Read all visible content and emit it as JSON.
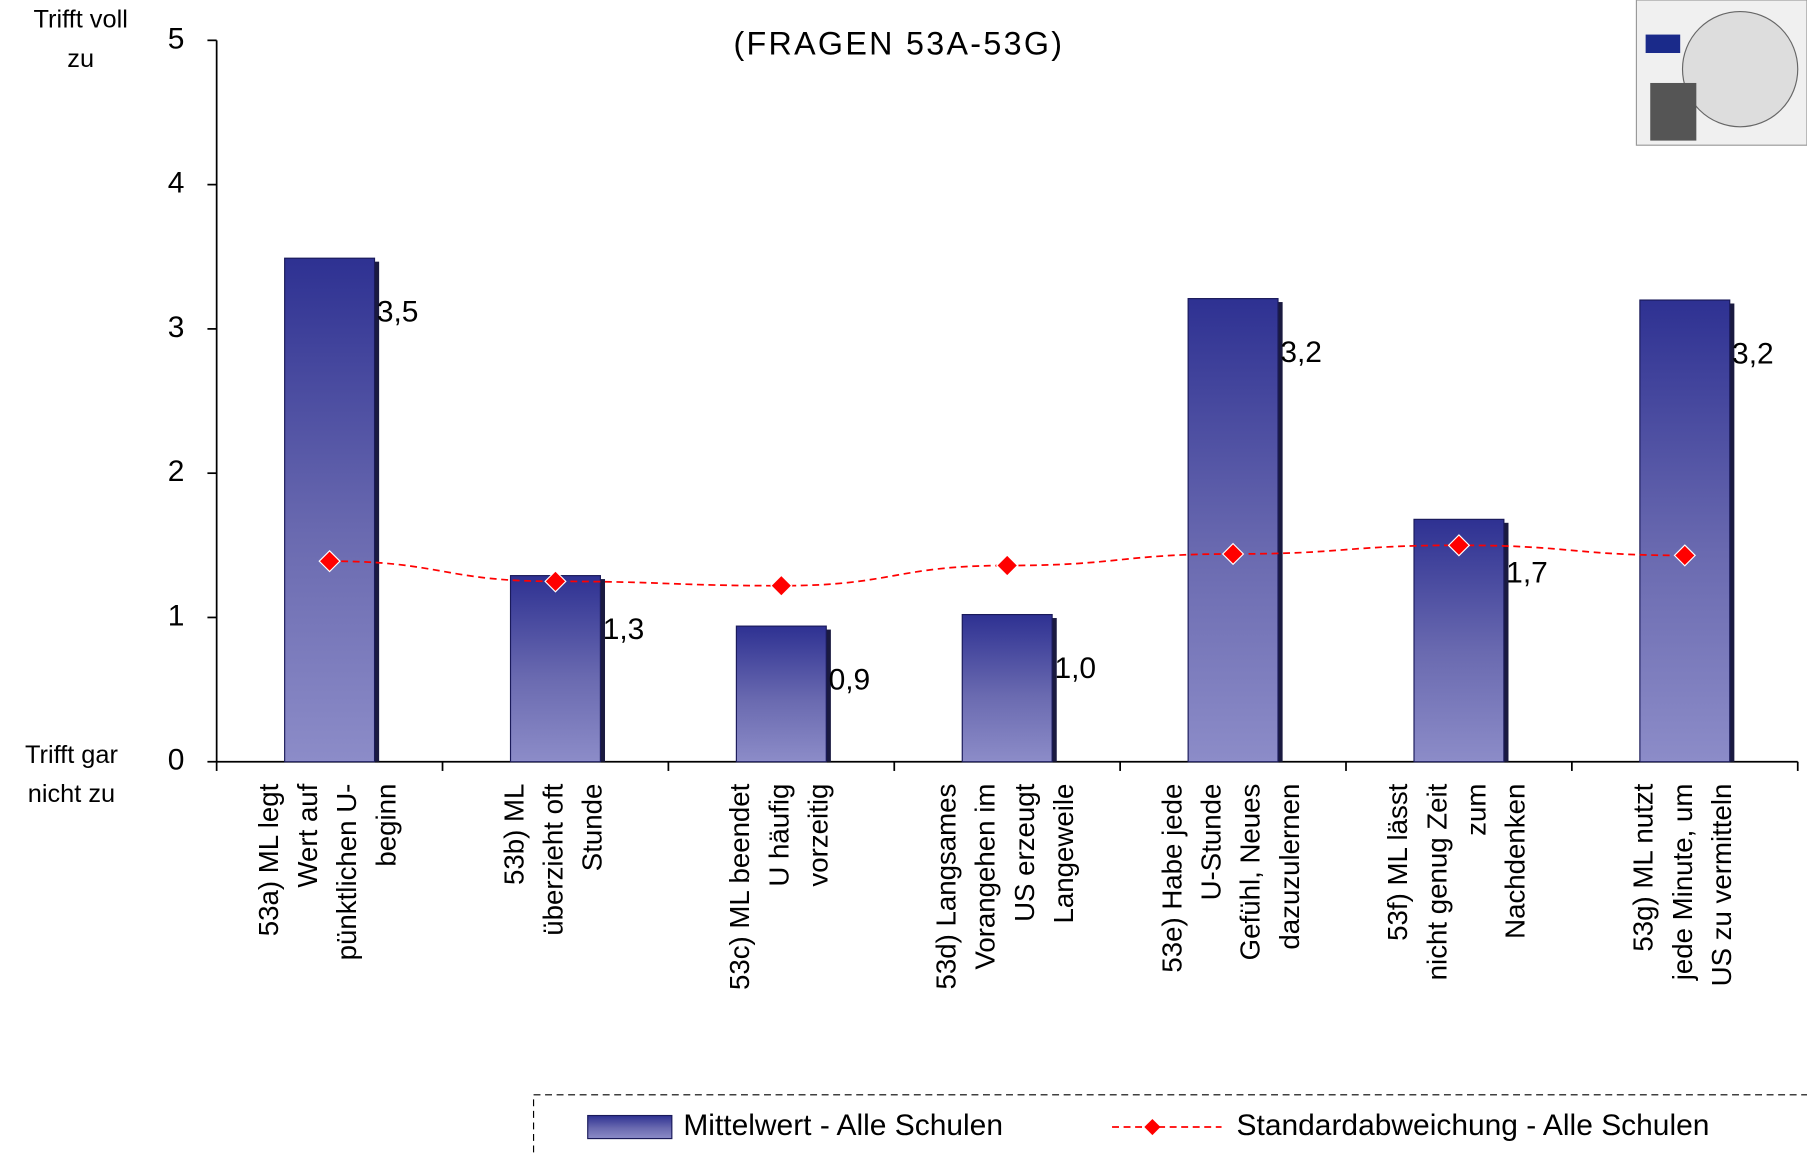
{
  "chart_data": {
    "type": "bar",
    "subtitle": "(FRAGEN 53A-53G)",
    "y_top_label": "Trifft voll\nzu",
    "y_bottom_label": "Trifft gar\nnicht zu",
    "categories": [
      "53a) ML legt\nWert auf\npünktlichen U-\nbeginn",
      "53b) ML\nüberzieht oft\nStunde",
      "53c) ML beendet\nU häufig\nvorzeitig",
      "53d) Langsames\nVorangehen im\nUS erzeugt\nLangeweile",
      "53e) Habe jede\nU-Stunde\nGefühl, Neues\ndazuzulernen",
      "53f) ML lässt\nnicht genug Zeit\nzum\nNachdenken",
      "53g) ML nutzt\njede Minute, um\nUS zu vermitteln"
    ],
    "series": [
      {
        "name": "Mittelwert - Alle Schulen",
        "color": "#2e3192",
        "type": "bar",
        "values": [
          3.49,
          1.29,
          0.94,
          1.02,
          3.21,
          1.68,
          3.2
        ],
        "value_labels": [
          "3,5",
          "1,3",
          "0,9",
          "1,0",
          "3,2",
          "1,7",
          "3,2"
        ]
      },
      {
        "name": "Standardabweichung - Alle Schulen",
        "color": "#ff0000",
        "type": "line",
        "values": [
          1.39,
          1.25,
          1.22,
          1.36,
          1.44,
          1.5,
          1.43
        ]
      }
    ],
    "ylim": [
      0,
      5
    ],
    "yticks": [
      0,
      1,
      2,
      3,
      4,
      5
    ],
    "legend": "bottom-right"
  }
}
